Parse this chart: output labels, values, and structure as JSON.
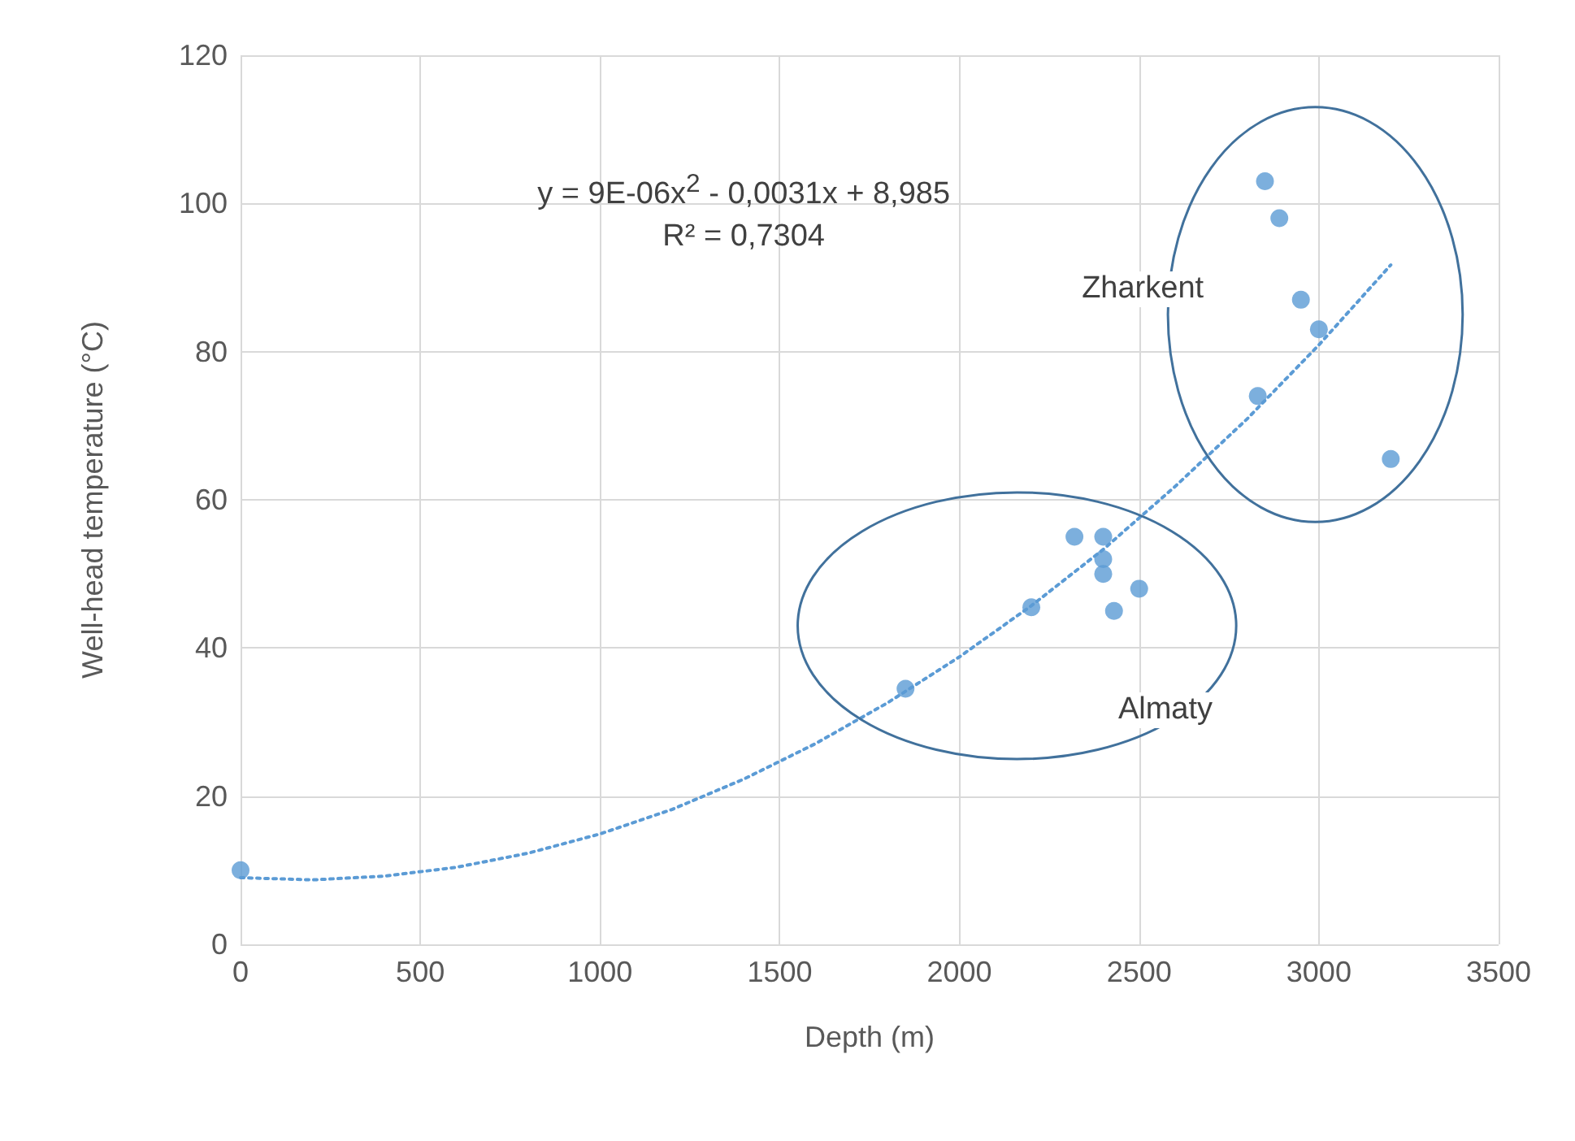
{
  "chart_data": {
    "type": "scatter",
    "xlabel": "Depth (m)",
    "ylabel": "Well-head temperature (°C)",
    "xlim": [
      0,
      3500
    ],
    "xticks": [
      0,
      500,
      1000,
      1500,
      2000,
      2500,
      3000,
      3500
    ],
    "ylim": [
      0,
      120
    ],
    "yticks": [
      0,
      20,
      40,
      60,
      80,
      100,
      120
    ],
    "grid": true,
    "series": [
      {
        "color": "#5b9bd5",
        "marker": "circle",
        "x": [
          0,
          1850,
          2200,
          2320,
          2400,
          2400,
          2400,
          2430,
          2500,
          2850,
          2890,
          2950,
          3000,
          2830,
          3200
        ],
        "values": [
          10,
          34.5,
          45.5,
          55,
          55,
          52,
          50,
          45,
          48,
          103,
          98,
          87,
          83,
          74,
          65.5
        ]
      },
      {
        "type": "line",
        "color": "#5b9bd5",
        "marker": "none",
        "line_style": "dotted",
        "x": [
          0,
          200,
          400,
          600,
          800,
          1000,
          1200,
          1400,
          1600,
          1800,
          2000,
          2200,
          2400,
          2600,
          2800,
          3000,
          3200
        ],
        "values": [
          9,
          8.7,
          9.2,
          10.4,
          12.3,
          14.9,
          18.2,
          22.3,
          27.1,
          32.6,
          38.8,
          45.7,
          53.3,
          61.8,
          70.9,
          80.9,
          91.7
        ]
      }
    ],
    "annotations": [
      "y = 9E-06x$^{2}$ - 0,0031x + 8,985",
      "R² = 0,7304",
      "Zharkent",
      "Almaty"
    ]
  }
}
